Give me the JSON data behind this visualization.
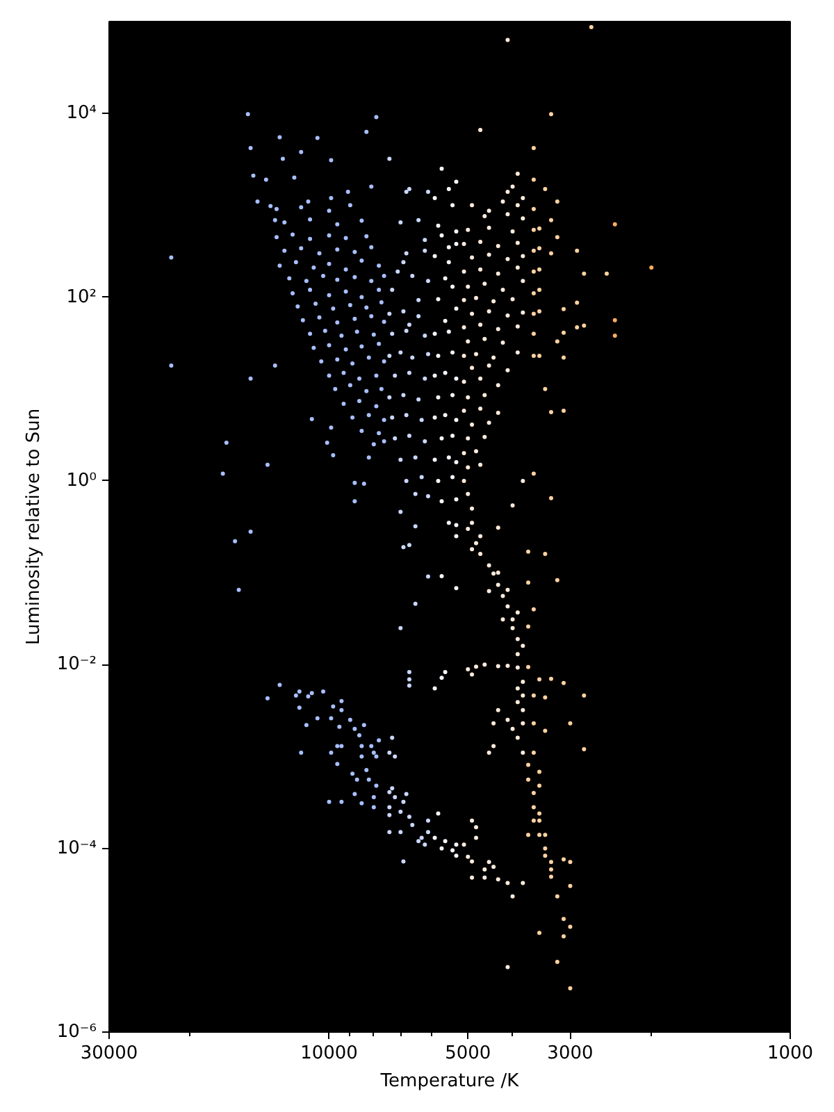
{
  "chart_data": {
    "type": "scatter",
    "xlabel": "Temperature /K",
    "ylabel": "Luminosity relative to Sun",
    "log": "xy",
    "xlim": [
      30000,
      1000
    ],
    "ylim": [
      1e-06,
      100000
    ],
    "xticks": [
      30000,
      {
        "value": 20000,
        "label": null
      },
      10000,
      {
        "value": 9000,
        "label": null
      },
      {
        "value": 8000,
        "label": null
      },
      {
        "value": 7000,
        "label": null
      },
      {
        "value": 6000,
        "label": null
      },
      5000,
      {
        "value": 4000,
        "label": null
      },
      3000,
      {
        "value": 2000,
        "label": null
      },
      1000
    ],
    "yticks": [
      {
        "value": 1e-06,
        "label": "10⁻⁶"
      },
      {
        "value": 0.0001,
        "label": "10⁻⁴"
      },
      {
        "value": 0.01,
        "label": "10⁻²"
      },
      {
        "value": 1,
        "label": "10⁰"
      },
      {
        "value": 100,
        "label": "10²"
      },
      {
        "value": 10000,
        "label": "10⁴"
      }
    ],
    "marker": "circle",
    "series": [
      {
        "color": "#a8bfff",
        "x": [
          13000,
          11500,
          10000,
          9000,
          12500,
          11000,
          9600,
          8500,
          13000,
          12000,
          11000,
          10000,
          9200,
          8300,
          12500,
          11500,
          10500,
          9600,
          8800,
          8100,
          12800,
          11800,
          10800,
          10000,
          9200,
          8500,
          7800,
          12200,
          11200,
          10300,
          9600,
          8800,
          8100,
          7600,
          12000,
          11000,
          10000,
          9200,
          8500,
          7800,
          11700,
          10700,
          9800,
          9000,
          8300,
          7700,
          11400,
          10500,
          9600,
          8800,
          8100,
          7600,
          11000,
          10200,
          9400,
          8700,
          8000,
          10800,
          10000,
          9200,
          8500,
          7800,
          10400,
          9600,
          8900,
          8200,
          7600,
          10000,
          9300,
          8600,
          7900,
          9700,
          9000,
          8300,
          7700,
          9300,
          8600,
          7900,
          8900,
          8200,
          7600,
          8500,
          7800,
          8000,
          7600
        ],
        "values": [
          910,
          950,
          870,
          1000,
          650,
          700,
          620,
          680,
          450,
          480,
          430,
          470,
          440,
          460,
          320,
          340,
          300,
          330,
          310,
          350,
          220,
          240,
          210,
          230,
          200,
          250,
          220,
          160,
          150,
          170,
          155,
          165,
          150,
          170,
          110,
          120,
          105,
          115,
          100,
          120,
          79,
          85,
          75,
          82,
          77,
          88,
          56,
          60,
          53,
          58,
          62,
          54,
          40,
          43,
          38,
          42,
          39,
          28,
          30,
          27,
          29,
          31,
          20,
          21,
          19,
          22,
          20,
          14,
          15,
          13,
          14,
          10,
          11,
          9.5,
          10,
          6.9,
          7.4,
          6.5,
          4.9,
          5.2,
          4.6,
          3.5,
          3.3,
          2.5,
          2.7
        ]
      },
      {
        "color": "#a8bfff",
        "x": [
          15000,
          7900,
          8300,
          12800,
          14800,
          10600,
          11500,
          9900,
          14600,
          13700,
          11900,
          12600,
          13400,
          11100,
          9900,
          9100,
          8100,
          14300,
          22000,
          22000,
          14800,
          13100,
          16700,
          17000,
          13600,
          14800,
          16000,
          15700,
          10900,
          10100,
          9800,
          8800,
          8400,
          8800,
          9900,
          8200,
          13100
        ],
        "values": [
          9800,
          9100,
          6300,
          5500,
          4200,
          5400,
          3800,
          3100,
          2100,
          1900,
          2000,
          3200,
          980,
          1100,
          1200,
          1400,
          1600,
          1100,
          270,
          18,
          13,
          18,
          2.6,
          1.2,
          1.5,
          0.28,
          0.22,
          0.065,
          4.7,
          2.6,
          1.9,
          0.95,
          0.93,
          0.6,
          3.8,
          1.8,
          690
        ]
      },
      {
        "color": "#a8bfff",
        "x": [
          12800,
          13600,
          11800,
          11600,
          11100,
          10900,
          10300,
          11600,
          11200,
          10600,
          11500,
          9800,
          9900,
          9400,
          9400,
          9500,
          9000,
          8800,
          8400,
          8600,
          9600,
          9400,
          9900,
          9600,
          8500,
          8500,
          8100,
          7800,
          8000,
          7900,
          8300,
          8900,
          8700,
          8200,
          7900,
          8000,
          8800,
          9400,
          10000,
          8500,
          8000
        ],
        "values": [
          0.006,
          0.0043,
          0.0046,
          0.0051,
          0.0045,
          0.0049,
          0.0051,
          0.0034,
          0.0022,
          0.0026,
          0.0011,
          0.0035,
          0.0026,
          0.004,
          0.0032,
          0.0021,
          0.0025,
          0.002,
          0.0022,
          0.0017,
          0.0013,
          0.0013,
          0.0011,
          0.00083,
          0.0013,
          0.001,
          0.0013,
          0.0015,
          0.0011,
          0.001,
          0.00071,
          0.00065,
          0.00056,
          0.00056,
          0.00048,
          0.00036,
          0.00039,
          0.00032,
          0.00032,
          0.00031,
          0.00028
        ]
      },
      {
        "color": "#cad8ff",
        "x": [
          7400,
          6900,
          6400,
          7300,
          6800,
          6200,
          7400,
          7000,
          6600,
          6100,
          7200,
          6700,
          6200,
          7400,
          6900,
          6400,
          7300,
          6800,
          6300,
          7200,
          6700,
          6200,
          7000,
          6500,
          6800,
          6300,
          6500,
          6100,
          7400,
          6800,
          7000,
          6700,
          6400,
          6200,
          6200,
          6800,
          7100,
          6600,
          6100,
          7300,
          6400,
          6900,
          6700,
          6100,
          6700,
          6700,
          6700,
          6900,
          6500,
          7000,
          7000,
          6500,
          6700,
          6100
        ],
        "values": [
          66,
          70,
          62,
          40,
          43,
          38,
          23,
          25,
          22,
          24,
          14,
          15,
          13,
          8.1,
          8.6,
          7.7,
          4.9,
          5.2,
          4.6,
          2.9,
          3.1,
          2.7,
          1.7,
          1.8,
          1.0,
          1.1,
          0.72,
          0.68,
          3200,
          1400,
          650,
          1500,
          690,
          420,
          320,
          300,
          190,
          170,
          150,
          120,
          93,
          240,
          50,
          1400,
          0.0083,
          0.0069,
          0.0059,
          0.19,
          0.046,
          0.025,
          0.46,
          0.32,
          0.2,
          0.091
        ]
      },
      {
        "color": "#cad8ff",
        "x": [
          7400,
          7200,
          7300,
          7400,
          7300,
          6800,
          7200,
          7400,
          7400,
          7000,
          6900,
          6700,
          6600,
          6100,
          7400,
          7000,
          6300,
          6400,
          6200,
          6900,
          6100
        ],
        "values": [
          0.0011,
          0.001,
          0.0016,
          0.00041,
          0.00045,
          0.00039,
          0.00036,
          0.00028,
          0.00023,
          0.00025,
          0.00032,
          0.00022,
          0.00018,
          0.0002,
          0.00015,
          0.00015,
          0.00013,
          0.00012,
          0.00011,
          7.2e-05,
          0.00015
        ]
      },
      {
        "color": "#f6f5ff",
        "x": [
          5900,
          5500,
          5800,
          5400,
          5900,
          5600,
          5300,
          5800,
          5400,
          5900,
          5600,
          5300,
          5700,
          5400,
          5900,
          5500,
          5300,
          5800,
          5400,
          5700,
          5300,
          5500,
          5300,
          5300,
          5900,
          5500,
          5300,
          5700,
          5300,
          5500,
          5700,
          5400,
          5800,
          5500,
          5300,
          5900,
          5600,
          5400,
          5800,
          5300,
          5600
        ],
        "values": [
          40,
          42,
          23,
          25,
          14,
          15,
          13,
          8.1,
          8.6,
          4.9,
          5.2,
          4.6,
          2.9,
          3.1,
          1.7,
          1.8,
          1.6,
          1.0,
          1.1,
          0.6,
          0.63,
          0.35,
          0.33,
          0.25,
          1200,
          1500,
          1800,
          470,
          380,
          240,
          2500,
          1000,
          600,
          350,
          520,
          280,
          160,
          130,
          95,
          75,
          55
        ]
      },
      {
        "color": "#f6f5ff",
        "x": [
          5800,
          5900,
          5700,
          5600,
          5300,
          5400,
          5300,
          5700,
          5600,
          5900,
          5700,
          5300
        ],
        "values": [
          0.00024,
          0.00013,
          0.0001,
          0.00012,
          0.00011,
          9.5e-05,
          8.3e-05,
          0.0072,
          0.0083,
          0.0055,
          0.092,
          0.068
        ]
      },
      {
        "color": "#ffeadb",
        "x": [
          4200,
          3900,
          4600,
          4100,
          3800,
          5000,
          4500,
          4000,
          5100,
          4700,
          4300,
          3900,
          4900,
          4500,
          4100,
          3800,
          5100,
          4700,
          4300,
          3900,
          5000,
          4600,
          4200,
          3800,
          5100,
          4800,
          4400,
          4000,
          4900,
          4500,
          4100,
          3800,
          5100,
          4700,
          4300,
          3900,
          5000,
          4600,
          4200,
          5100,
          4800,
          4400,
          3900,
          4900,
          4500,
          4100,
          5100,
          4700,
          4300,
          5000,
          4600,
          5100,
          4700,
          4300,
          4900,
          4500,
          5000,
          4600,
          5100,
          4800,
          5000,
          4700,
          5100,
          5000,
          4900,
          4900
        ],
        "values": [
          1100,
          1000,
          760,
          800,
          720,
          540,
          570,
          520,
          380,
          400,
          360,
          390,
          270,
          290,
          260,
          280,
          190,
          200,
          180,
          210,
          130,
          140,
          120,
          150,
          93,
          98,
          90,
          95,
          66,
          70,
          63,
          68,
          47,
          50,
          45,
          48,
          33,
          35,
          32,
          23,
          24,
          22,
          25,
          17,
          18,
          16,
          12,
          13,
          11,
          8.1,
          8.6,
          5.8,
          6.1,
          5.5,
          4.1,
          4.3,
          2.9,
          3.0,
          2.0,
          2.1,
          1.4,
          1.5,
          1.0,
          0.72,
          0.5,
          0.35
        ]
      },
      {
        "color": "#ffeadb",
        "x": [
          5000,
          4800,
          4700,
          4500,
          4400,
          4300,
          4200,
          4100,
          4000,
          4000,
          3900,
          3900,
          3900,
          3800,
          3800,
          3800,
          3800,
          4700,
          4900,
          4300,
          4500,
          4100,
          4200,
          3900,
          3800,
          3900,
          3900,
          3900,
          3800
        ],
        "values": [
          0.3,
          0.21,
          0.16,
          0.12,
          0.098,
          0.074,
          0.056,
          0.043,
          0.031,
          0.025,
          0.019,
          0.013,
          0.0093,
          0.0065,
          0.0046,
          0.0032,
          0.0023,
          0.25,
          0.18,
          0.1,
          0.063,
          0.065,
          0.031,
          0.037,
          0.016,
          0.0055,
          0.0039,
          0.0016,
          0.0011
        ]
      },
      {
        "color": "#ffeadb",
        "x": [
          4100,
          4700,
          3900,
          4000,
          4100,
          3800,
          4900,
          4500,
          3800,
          4000,
          4300,
          5000,
          4800,
          4600,
          4900,
          4300,
          4100,
          4300,
          4400,
          4100,
          4500,
          4400,
          4000,
          5100,
          4900,
          4800,
          4800,
          5000,
          4900,
          4600,
          4500,
          4400,
          4900,
          4600,
          4300,
          4100,
          4000,
          3800,
          4100
        ],
        "values": [
          63000,
          6600,
          2200,
          1600,
          1400,
          1200,
          1000,
          870,
          1.0,
          0.54,
          0.31,
          0.0089,
          0.0095,
          0.01,
          0.0078,
          0.0096,
          0.0097,
          0.0032,
          0.0023,
          0.0025,
          0.0011,
          0.0013,
          0.002,
          0.00011,
          0.0002,
          0.00017,
          0.00013,
          8.1e-05,
          7.2e-05,
          5.9e-05,
          7.1e-05,
          6.3e-05,
          4.8e-05,
          4.8e-05,
          4.6e-05,
          4.2e-05,
          3e-05,
          4.2e-05,
          5.1e-06
        ]
      },
      {
        "color": "#ffd2a1",
        "x": [
          3600,
          3600,
          3500,
          3600,
          3500,
          3600,
          3500,
          3600,
          3500,
          3600,
          3500,
          3600,
          3600,
          3600,
          3400,
          3200,
          3300,
          3200,
          3300,
          2900,
          2800,
          2500,
          2900,
          3100,
          2800,
          2900,
          3100,
          3200,
          3100,
          3500,
          3100,
          3300,
          3400,
          3600,
          3300,
          2700,
          3300,
          3600
        ],
        "values": [
          910,
          540,
          560,
          320,
          340,
          190,
          200,
          110,
          120,
          66,
          70,
          40,
          23,
          1900,
          1500,
          1100,
          690,
          450,
          300,
          320,
          180,
          180,
          87,
          74,
          49,
          47,
          41,
          33,
          22,
          23,
          5.8,
          5.6,
          10,
          1.2,
          0.65,
          87000,
          9800,
          4200
        ]
      },
      {
        "color": "#ffd2a1",
        "x": [
          3700,
          3700,
          3600,
          3600,
          3500,
          3500,
          3400,
          3300,
          3300,
          3200,
          3100,
          3100,
          3000,
          3700,
          3600,
          3600,
          3600,
          3500,
          3500,
          3600,
          3500,
          3400,
          3400,
          3300,
          3700,
          3400,
          3200,
          3700,
          3600,
          3700,
          3500,
          3300,
          3100,
          2800,
          3000,
          2800,
          3400,
          3400,
          3700,
          3000,
          3100,
          3000,
          3000,
          3200,
          3500
        ],
        "values": [
          0.00081,
          0.00056,
          0.0004,
          0.00028,
          0.0002,
          0.00014,
          0.0001,
          7.1e-05,
          4.9e-05,
          3e-05,
          1.7e-05,
          1.1e-05,
          3e-06,
          0.0094,
          0.0046,
          0.0023,
          0.0011,
          0.00068,
          0.00048,
          0.0002,
          0.00024,
          0.00014,
          8.3e-05,
          5.9e-05,
          0.17,
          0.16,
          0.083,
          0.078,
          0.04,
          0.026,
          0.0069,
          0.007,
          0.0063,
          0.0046,
          0.0023,
          0.0012,
          0.0019,
          0.0044,
          0.00014,
          7.1e-05,
          7.6e-05,
          3.9e-05,
          1.4e-05,
          5.8e-06,
          1.2e-05
        ]
      },
      {
        "color": "#ffae5a",
        "x": [
          2400,
          2000,
          2400,
          2400
        ],
        "values": [
          620,
          210,
          56,
          38
        ]
      }
    ]
  }
}
